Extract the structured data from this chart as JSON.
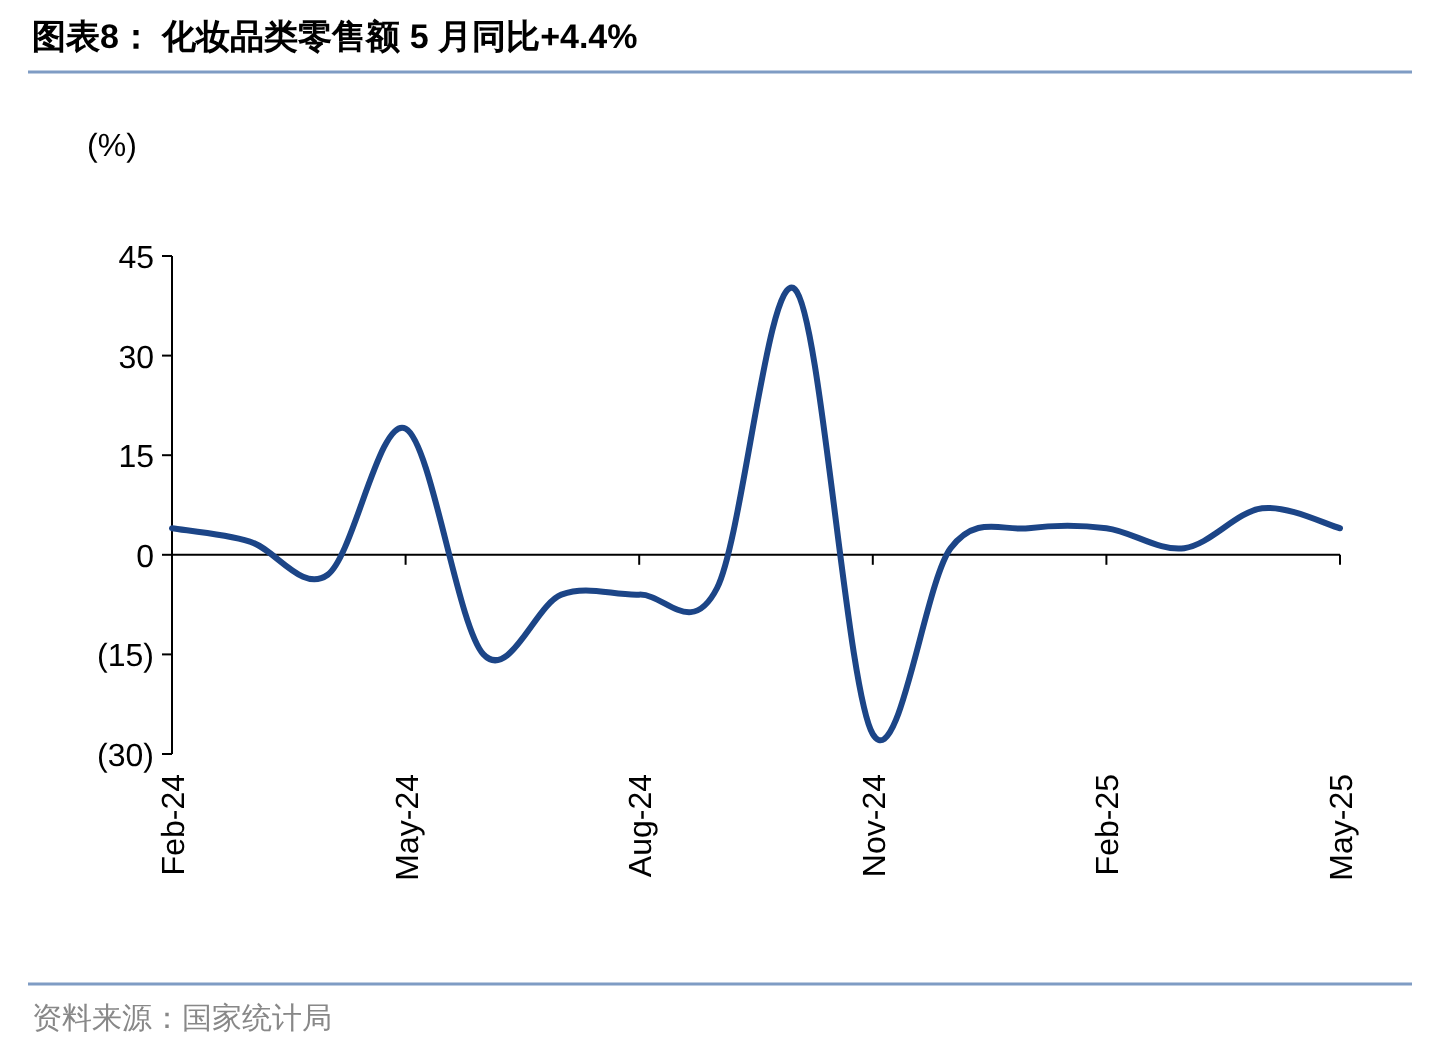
{
  "chart_data": {
    "type": "line",
    "title": "图表8：  化妆品类零售额 5 月同比+4.4%",
    "ylabel": "(%)",
    "categories": [
      "Feb-24",
      null,
      null,
      "May-24",
      null,
      null,
      "Aug-24",
      null,
      null,
      "Nov-24",
      null,
      null,
      "Feb-25",
      null,
      null,
      "May-25"
    ],
    "series": [
      {
        "color": "#1c4587",
        "values": [
          4,
          2,
          -3,
          19,
          -15,
          -6,
          -6,
          -5,
          40,
          -27,
          1,
          4,
          4,
          1,
          7,
          4
        ]
      }
    ],
    "ylim": [
      -30,
      45
    ],
    "yticks": [
      {
        "value": -30,
        "label": "(30)"
      },
      {
        "value": -15,
        "label": "(15)"
      },
      0,
      15,
      30,
      45
    ],
    "marker": "none",
    "line_style": "solid",
    "annotations": [
      "资料来源：国家统计局"
    ]
  }
}
